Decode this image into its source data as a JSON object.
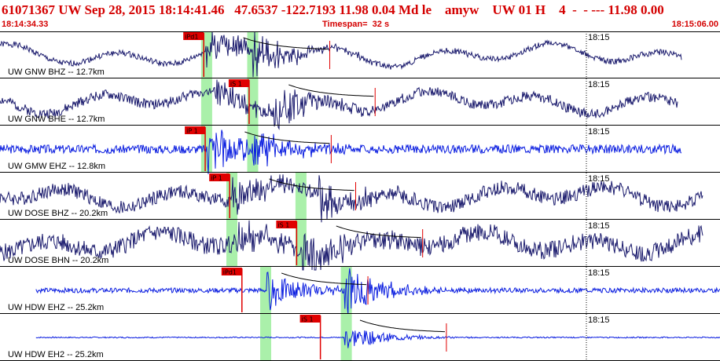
{
  "header": {
    "title": "61071367 UW Sep 28, 2015 18:14:41.46   47.6537 -122.7193 11.98 0.04 Md le    amyw    UW 01 H    4  -  - --- 11.98 0.00",
    "start_time": "18:14:34.33",
    "timespan": "Timespan=  32 s",
    "end_time": "18:15:06.00"
  },
  "colors": {
    "title": "#d40000",
    "trace_dark": "#1c1c6e",
    "trace_blue": "#0b1ee0",
    "pick": "#e00000",
    "highlight": "#aaf0aa",
    "border": "#000000"
  },
  "traces": [
    {
      "label": "UW GNW BHZ -- 12.7km",
      "color_key": "trace_dark",
      "time_label": "18:15",
      "picks": [
        {
          "label": "iPd1",
          "t": 0.283
        }
      ],
      "highlights": [
        0.287,
        0.351
      ],
      "seed": 1,
      "style": "long",
      "trace_start": 0.0,
      "trace_end": 0.947,
      "noise": 0.15,
      "burst_t": 0.285,
      "burst_amp": 0.9,
      "burst2_t": 0.35,
      "burst2_amp": 1.0
    },
    {
      "label": "UW GNW BHE -- 12.7km",
      "color_key": "trace_dark",
      "time_label": "18:15",
      "picks": [
        {
          "label": "iS 1",
          "t": 0.346
        }
      ],
      "highlights": [
        0.287,
        0.351
      ],
      "seed": 2,
      "style": "long",
      "trace_start": 0.0,
      "trace_end": 0.942,
      "noise": 0.25,
      "burst_t": 0.3,
      "burst_amp": 0.7,
      "burst2_t": 0.38,
      "burst2_amp": 1.0
    },
    {
      "label": "UW GMW EHZ -- 12.8km",
      "color_key": "trace_blue",
      "time_label": "18:15",
      "picks": [
        {
          "label": "iP 1",
          "t": 0.285
        }
      ],
      "highlights": [
        0.287,
        0.351
      ],
      "seed": 3,
      "style": "noise",
      "trace_start": 0.0,
      "trace_end": 0.947,
      "noise": 0.22,
      "burst_t": 0.288,
      "burst_amp": 1.0,
      "burst2_t": 0.35,
      "burst2_amp": 0.7
    },
    {
      "label": "UW DOSE BHZ -- 20.2km",
      "color_key": "trace_dark",
      "time_label": "18:15",
      "picks": [
        {
          "label": "iP 1",
          "t": 0.319
        }
      ],
      "highlights": [
        0.322,
        0.418
      ],
      "seed": 4,
      "style": "long",
      "trace_start": 0.0,
      "trace_end": 0.977,
      "noise": 0.35,
      "burst_t": 0.322,
      "burst_amp": 0.8,
      "burst2_t": 0.44,
      "burst2_amp": 0.9
    },
    {
      "label": "UW DOSE BHN -- 20.2km",
      "color_key": "trace_dark",
      "time_label": "18:15",
      "picks": [
        {
          "label": "iS 1",
          "t": 0.412
        }
      ],
      "highlights": [
        0.322,
        0.418
      ],
      "seed": 5,
      "style": "long",
      "trace_start": 0.0,
      "trace_end": 0.977,
      "noise": 0.45,
      "burst_t": 0.33,
      "burst_amp": 0.7,
      "burst2_t": 0.42,
      "burst2_amp": 1.0
    },
    {
      "label": "UW HDW EHZ -- 25.2km",
      "color_key": "trace_blue",
      "time_label": "18:15",
      "picks": [
        {
          "label": "iPd1",
          "t": 0.336
        }
      ],
      "highlights": [
        0.369,
        0.481
      ],
      "seed": 6,
      "style": "noise",
      "trace_start": 0.05,
      "trace_end": 1.0,
      "noise": 0.12,
      "burst_t": 0.37,
      "burst_amp": 0.8,
      "burst2_t": 0.478,
      "burst2_amp": 1.0
    },
    {
      "label": "UW HDW EH2 -- 25.2km",
      "color_key": "trace_blue",
      "time_label": "18:15",
      "picks": [
        {
          "label": "iS 1",
          "t": 0.445
        }
      ],
      "highlights": [
        0.369,
        0.481
      ],
      "seed": 7,
      "style": "noise",
      "trace_start": 0.05,
      "trace_end": 1.0,
      "noise": 0.03,
      "burst_t": 0.478,
      "burst_amp": 0.55,
      "burst2_t": 0.0,
      "burst2_amp": 0.0
    }
  ]
}
